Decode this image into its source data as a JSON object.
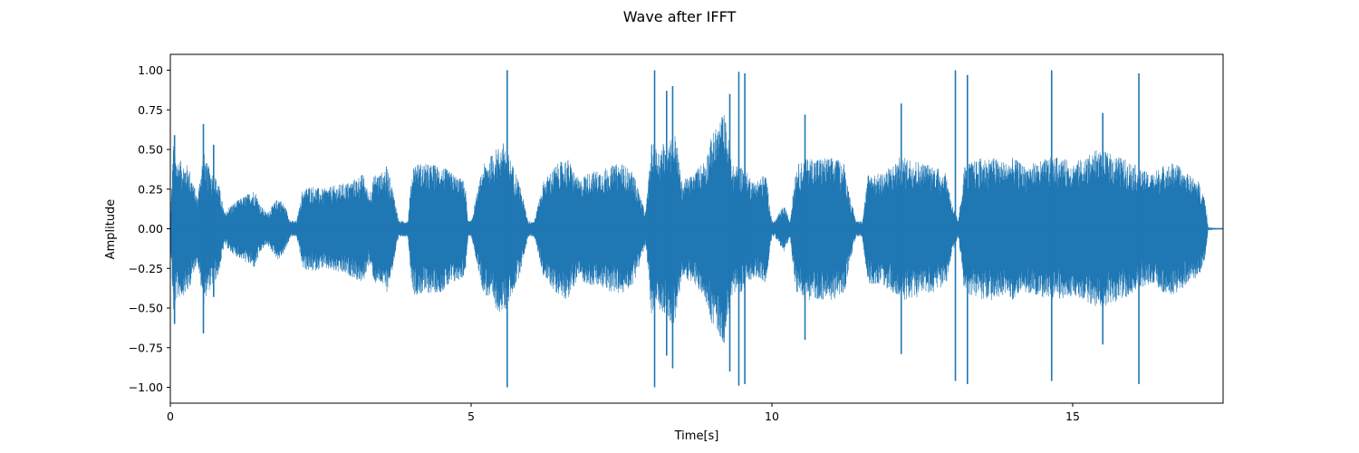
{
  "chart_data": {
    "type": "line",
    "title": "Wave after IFFT",
    "xlabel": "Time[s]",
    "ylabel": "Amplitude",
    "xlim": [
      0,
      17.5
    ],
    "ylim": [
      -1.1,
      1.1
    ],
    "xticks": [
      0,
      5,
      10,
      15
    ],
    "xtick_labels": [
      "0",
      "5",
      "10",
      "15"
    ],
    "yticks": [
      -1.0,
      -0.75,
      -0.5,
      -0.25,
      0.0,
      0.25,
      0.5,
      0.75,
      1.0
    ],
    "ytick_labels": [
      "−1.00",
      "−0.75",
      "−0.50",
      "−0.25",
      "0.00",
      "0.25",
      "0.50",
      "0.75",
      "1.00"
    ],
    "grid": false,
    "series": [
      {
        "color": "#1f77b4",
        "envelope_time": [
          0,
          0.05,
          0.1,
          0.3,
          0.45,
          0.55,
          0.6,
          0.8,
          0.9,
          1.0,
          1.2,
          1.4,
          1.5,
          1.6,
          1.7,
          1.8,
          1.9,
          2.0,
          2.05,
          2.1,
          2.2,
          2.3,
          2.4,
          2.5,
          3.0,
          3.2,
          3.3,
          3.4,
          3.5,
          3.6,
          3.7,
          3.8,
          3.9,
          3.95,
          4.0,
          4.05,
          4.5,
          4.7,
          4.9,
          4.95,
          5.0,
          5.2,
          5.4,
          5.55,
          5.65,
          5.8,
          5.95,
          6.0,
          6.05,
          6.2,
          6.4,
          6.6,
          6.8,
          6.9,
          7.2,
          7.5,
          7.7,
          7.9,
          8.0,
          8.1,
          8.3,
          8.4,
          8.5,
          8.7,
          8.9,
          9.0,
          9.1,
          9.2,
          9.35,
          9.5,
          9.7,
          9.9,
          10.0,
          10.05,
          10.2,
          10.3,
          10.4,
          10.6,
          10.8,
          11.0,
          11.2,
          11.3,
          11.4,
          11.5,
          11.6,
          11.8,
          12.0,
          12.1,
          12.3,
          12.5,
          12.7,
          12.9,
          13.0,
          13.1,
          13.2,
          13.3,
          13.5,
          13.7,
          13.9,
          14.0,
          14.2,
          14.4,
          14.6,
          14.8,
          15.0,
          15.2,
          15.4,
          15.6,
          15.8,
          16.0,
          16.1,
          16.3,
          16.5,
          16.7,
          16.9,
          17.1,
          17.2,
          17.25,
          17.5
        ],
        "envelope_amplitude": [
          0.05,
          0.55,
          0.45,
          0.4,
          0.2,
          0.5,
          0.42,
          0.3,
          0.1,
          0.15,
          0.2,
          0.25,
          0.15,
          0.1,
          0.15,
          0.2,
          0.15,
          0.05,
          0.05,
          0.05,
          0.25,
          0.27,
          0.27,
          0.25,
          0.3,
          0.35,
          0.22,
          0.35,
          0.35,
          0.4,
          0.25,
          0.05,
          0.05,
          0.05,
          0.3,
          0.42,
          0.4,
          0.35,
          0.3,
          0.05,
          0.05,
          0.4,
          0.5,
          0.55,
          0.45,
          0.3,
          0.05,
          0.05,
          0.05,
          0.3,
          0.4,
          0.45,
          0.3,
          0.35,
          0.38,
          0.42,
          0.35,
          0.1,
          0.55,
          0.5,
          0.6,
          0.6,
          0.3,
          0.35,
          0.45,
          0.6,
          0.65,
          0.75,
          0.4,
          0.4,
          0.3,
          0.35,
          0.05,
          0.05,
          0.15,
          0.05,
          0.4,
          0.45,
          0.45,
          0.45,
          0.42,
          0.2,
          0.05,
          0.05,
          0.35,
          0.35,
          0.4,
          0.45,
          0.45,
          0.42,
          0.4,
          0.35,
          0.15,
          0.05,
          0.4,
          0.42,
          0.45,
          0.45,
          0.42,
          0.45,
          0.4,
          0.42,
          0.45,
          0.45,
          0.42,
          0.45,
          0.5,
          0.48,
          0.45,
          0.42,
          0.38,
          0.35,
          0.4,
          0.42,
          0.35,
          0.3,
          0.2,
          0.01,
          0.0
        ],
        "spikes": [
          {
            "t": 0.07,
            "max": 0.59,
            "min": -0.6
          },
          {
            "t": 0.55,
            "max": 0.66,
            "min": -0.66
          },
          {
            "t": 0.72,
            "max": 0.53,
            "min": -0.43
          },
          {
            "t": 5.6,
            "max": 1.0,
            "min": -1.0
          },
          {
            "t": 8.05,
            "max": 1.0,
            "min": -1.0
          },
          {
            "t": 8.25,
            "max": 0.87,
            "min": -0.8
          },
          {
            "t": 8.35,
            "max": 0.9,
            "min": -0.88
          },
          {
            "t": 9.45,
            "max": 0.99,
            "min": -0.99
          },
          {
            "t": 9.3,
            "max": 0.85,
            "min": -0.9
          },
          {
            "t": 9.55,
            "max": 0.98,
            "min": -0.98
          },
          {
            "t": 13.05,
            "max": 1.0,
            "min": -0.96
          },
          {
            "t": 13.25,
            "max": 0.97,
            "min": -0.98
          },
          {
            "t": 14.65,
            "max": 1.0,
            "min": -0.96
          },
          {
            "t": 16.1,
            "max": 0.98,
            "min": -0.98
          },
          {
            "t": 12.15,
            "max": 0.79,
            "min": -0.79
          },
          {
            "t": 10.55,
            "max": 0.72,
            "min": -0.7
          },
          {
            "t": 15.5,
            "max": 0.73,
            "min": -0.73
          }
        ]
      }
    ]
  }
}
